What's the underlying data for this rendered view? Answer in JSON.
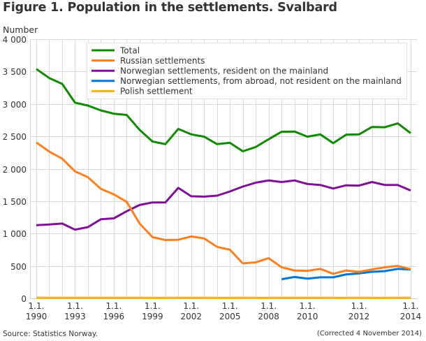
{
  "title": "Figure 1. Population in the settlements. Svalbard",
  "source": "Source: Statistics Norway.",
  "note": "(Corrected 4 November 2014)",
  "chart_data": {
    "type": "line",
    "title": "Figure 1. Population in the settlements. Svalbard",
    "xlabel": "",
    "ylabel": "Number",
    "ylim": [
      0,
      4000
    ],
    "yticks": [
      0,
      500,
      1000,
      1500,
      2000,
      2500,
      3000,
      3500,
      4000
    ],
    "ytick_labels": [
      "0",
      "500",
      "1 000",
      "1 500",
      "2 000",
      "2 500",
      "3 000",
      "3 500",
      "4 000"
    ],
    "grid": true,
    "legend_position": "top-right",
    "x": [
      "1.1.1990",
      "1.1.1991",
      "1.1.1992",
      "1.1.1993",
      "1.1.1994",
      "1.1.1995",
      "1.1.1996",
      "1.1.1997",
      "1.1.1998",
      "1.1.1999",
      "1.1.2000",
      "1.1.2001",
      "1.1.2002",
      "1.1.2003",
      "1.1.2004",
      "1.1.2005",
      "1.1.2006",
      "1.1.2007",
      "1.1.2008",
      "1.1.2009",
      "1.7.2009",
      "1.1.2010",
      "1.7.2010",
      "1.1.2011",
      "1.7.2011",
      "1.1.2012",
      "1.7.2012",
      "1.1.2013",
      "1.7.2013",
      "1.1.2014"
    ],
    "xtick_labels": [
      {
        "index": 0,
        "line1": "1.1.",
        "line2": "1990"
      },
      {
        "index": 3,
        "line1": "1.1.",
        "line2": "1993"
      },
      {
        "index": 6,
        "line1": "1.1.",
        "line2": "1996"
      },
      {
        "index": 9,
        "line1": "1.1.",
        "line2": "1999"
      },
      {
        "index": 12,
        "line1": "1.1.",
        "line2": "2002"
      },
      {
        "index": 15,
        "line1": "1.1.",
        "line2": "2005"
      },
      {
        "index": 18,
        "line1": "1.1.",
        "line2": "2008"
      },
      {
        "index": 21,
        "line1": "1.1.",
        "line2": "2010"
      },
      {
        "index": 25,
        "line1": "1.1.",
        "line2": "2012"
      },
      {
        "index": 29,
        "line1": "1.1.",
        "line2": "2014"
      }
    ],
    "series": [
      {
        "name": "Total",
        "color": "#108a00",
        "values": [
          3540,
          3400,
          3310,
          3020,
          2975,
          2900,
          2850,
          2830,
          2600,
          2420,
          2380,
          2615,
          2530,
          2495,
          2380,
          2400,
          2270,
          2335,
          2455,
          2570,
          2575,
          2495,
          2530,
          2395,
          2525,
          2530,
          2645,
          2640,
          2700,
          2550
        ]
      },
      {
        "name": "Russian settlements",
        "color": "#ff7f1e",
        "values": [
          2405,
          2265,
          2155,
          1960,
          1870,
          1690,
          1605,
          1490,
          1155,
          945,
          900,
          905,
          955,
          925,
          795,
          750,
          540,
          555,
          620,
          480,
          430,
          425,
          455,
          380,
          430,
          410,
          445,
          480,
          500,
          450
        ]
      },
      {
        "name": "Norwegian settlements, resident on the mainland",
        "color": "#800f98",
        "values": [
          1130,
          1140,
          1155,
          1060,
          1100,
          1220,
          1235,
          1345,
          1440,
          1480,
          1480,
          1705,
          1575,
          1570,
          1585,
          1650,
          1725,
          1785,
          1820,
          1795,
          1820,
          1765,
          1750,
          1695,
          1745,
          1740,
          1795,
          1750,
          1750,
          1665
        ]
      },
      {
        "name": "Norwegian settlements, from abroad, not resident on the mainland",
        "color": "#0077d6",
        "values": [
          null,
          null,
          null,
          null,
          null,
          null,
          null,
          null,
          null,
          null,
          null,
          null,
          null,
          null,
          null,
          null,
          null,
          null,
          null,
          295,
          330,
          305,
          325,
          325,
          370,
          385,
          410,
          420,
          455,
          445
        ]
      },
      {
        "name": "Polish settlement",
        "color": "#ffb300",
        "values": [
          10,
          10,
          10,
          10,
          10,
          10,
          10,
          10,
          10,
          8,
          8,
          10,
          10,
          10,
          8,
          8,
          10,
          8,
          8,
          10,
          10,
          10,
          10,
          8,
          8,
          10,
          8,
          8,
          10,
          10
        ]
      }
    ]
  }
}
